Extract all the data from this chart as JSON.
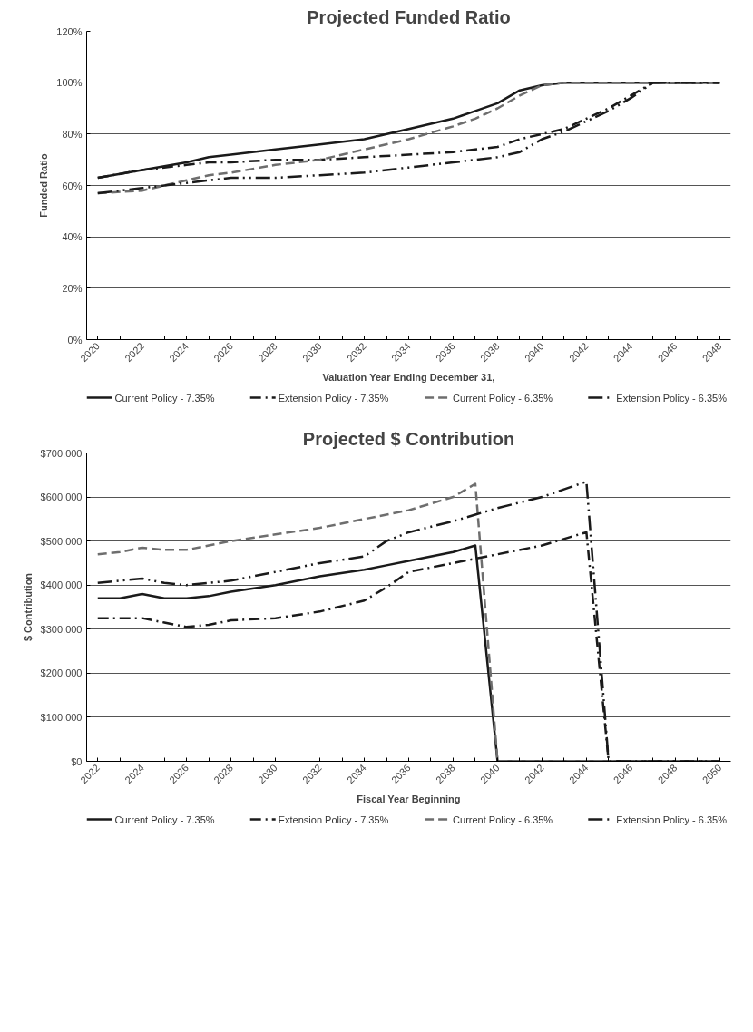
{
  "chart_data": [
    {
      "type": "line",
      "title": "Projected Funded Ratio",
      "xlabel": "Valuation Year Ending December 31,",
      "ylabel": "Funded Ratio",
      "x": [
        2020,
        2022,
        2024,
        2025,
        2026,
        2028,
        2030,
        2032,
        2034,
        2036,
        2037,
        2038,
        2039,
        2040,
        2041,
        2042,
        2043,
        2044,
        2045,
        2046,
        2048
      ],
      "series": [
        {
          "name": "Current Policy - 7.35%",
          "color": "#1a1a1a",
          "line_style": "solid",
          "values": [
            63,
            66,
            69,
            71,
            72,
            74,
            76,
            78,
            82,
            86,
            89,
            92,
            97,
            99,
            100,
            100,
            100,
            100,
            100,
            100,
            100
          ]
        },
        {
          "name": "Extension Policy - 7.35%",
          "color": "#1a1a1a",
          "line_style": "dashdot",
          "values": [
            63,
            66,
            68,
            69,
            69,
            70,
            70,
            71,
            72,
            73,
            74,
            75,
            78,
            80,
            82,
            86,
            90,
            95,
            100,
            100,
            100
          ]
        },
        {
          "name": "Current Policy - 6.35%",
          "color": "#6e6e6e",
          "line_style": "dashed",
          "values": [
            57,
            58,
            62,
            64,
            65,
            68,
            70,
            74,
            78,
            83,
            86,
            90,
            95,
            99,
            100,
            100,
            100,
            100,
            100,
            100,
            100
          ]
        },
        {
          "name": "Extension Policy - 6.35%",
          "color": "#1a1a1a",
          "line_style": "dashdotdot",
          "values": [
            57,
            59,
            61,
            62,
            63,
            63,
            64,
            65,
            67,
            69,
            70,
            71,
            73,
            78,
            81,
            85,
            89,
            94,
            100,
            100,
            100
          ]
        }
      ],
      "xlim": [
        2019.5,
        2048.5
      ],
      "xticks": [
        2020,
        {
          "value": 2021,
          "label": null
        },
        2022,
        {
          "value": 2023,
          "label": null
        },
        2024,
        {
          "value": 2025,
          "label": null
        },
        2026,
        {
          "value": 2027,
          "label": null
        },
        2028,
        {
          "value": 2029,
          "label": null
        },
        2030,
        {
          "value": 2031,
          "label": null
        },
        2032,
        {
          "value": 2033,
          "label": null
        },
        2034,
        {
          "value": 2035,
          "label": null
        },
        2036,
        {
          "value": 2037,
          "label": null
        },
        2038,
        {
          "value": 2039,
          "label": null
        },
        2040,
        {
          "value": 2041,
          "label": null
        },
        2042,
        {
          "value": 2043,
          "label": null
        },
        2044,
        {
          "value": 2045,
          "label": null
        },
        2046,
        {
          "value": 2047,
          "label": null
        },
        2048
      ],
      "ylim": [
        0,
        120
      ],
      "yticks": [
        {
          "value": 0,
          "label": "0%"
        },
        {
          "value": 20,
          "label": "20%"
        },
        {
          "value": 40,
          "label": "40%"
        },
        {
          "value": 60,
          "label": "60%"
        },
        {
          "value": 80,
          "label": "80%"
        },
        {
          "value": 100,
          "label": "100%"
        },
        {
          "value": 120,
          "label": "120%"
        }
      ],
      "grid": "y",
      "legend": "bottom"
    },
    {
      "type": "line",
      "title": "Projected $ Contribution",
      "xlabel": "Fiscal Year Beginning",
      "ylabel": "$ Contribution",
      "x": [
        2022,
        2023,
        2024,
        2025,
        2026,
        2027,
        2028,
        2030,
        2032,
        2034,
        2035,
        2036,
        2038,
        2039,
        2040,
        2042,
        2044,
        2045,
        2046,
        2048,
        2050
      ],
      "series": [
        {
          "name": "Current Policy - 7.35%",
          "color": "#1a1a1a",
          "line_style": "solid",
          "values": [
            370000,
            370000,
            380000,
            370000,
            370000,
            375000,
            385000,
            400000,
            420000,
            435000,
            445000,
            455000,
            475000,
            490000,
            0,
            0,
            0,
            0,
            0,
            0,
            0
          ]
        },
        {
          "name": "Extension Policy - 7.35%",
          "color": "#1a1a1a",
          "line_style": "dashdot",
          "values": [
            325000,
            325000,
            325000,
            315000,
            305000,
            310000,
            320000,
            325000,
            340000,
            365000,
            395000,
            430000,
            450000,
            460000,
            470000,
            490000,
            520000,
            0,
            0,
            0,
            0
          ]
        },
        {
          "name": "Current Policy - 6.35%",
          "color": "#6e6e6e",
          "line_style": "dashed",
          "values": [
            470000,
            475000,
            485000,
            480000,
            480000,
            490000,
            500000,
            515000,
            530000,
            550000,
            560000,
            570000,
            600000,
            630000,
            0,
            0,
            0,
            0,
            0,
            0,
            0
          ]
        },
        {
          "name": "Extension Policy - 6.35%",
          "color": "#1a1a1a",
          "line_style": "dashdotdot",
          "values": [
            405000,
            410000,
            415000,
            405000,
            400000,
            405000,
            410000,
            430000,
            450000,
            465000,
            500000,
            520000,
            545000,
            560000,
            575000,
            600000,
            635000,
            0,
            0,
            0,
            0
          ]
        }
      ],
      "xlim": [
        2021.5,
        2050.5
      ],
      "xticks": [
        2022,
        {
          "value": 2023,
          "label": null
        },
        2024,
        {
          "value": 2025,
          "label": null
        },
        2026,
        {
          "value": 2027,
          "label": null
        },
        2028,
        {
          "value": 2029,
          "label": null
        },
        2030,
        {
          "value": 2031,
          "label": null
        },
        2032,
        {
          "value": 2033,
          "label": null
        },
        2034,
        {
          "value": 2035,
          "label": null
        },
        2036,
        {
          "value": 2037,
          "label": null
        },
        2038,
        {
          "value": 2039,
          "label": null
        },
        2040,
        {
          "value": 2041,
          "label": null
        },
        2042,
        {
          "value": 2043,
          "label": null
        },
        2044,
        {
          "value": 2045,
          "label": null
        },
        2046,
        {
          "value": 2047,
          "label": null
        },
        2048,
        {
          "value": 2049,
          "label": null
        },
        2050
      ],
      "ylim": [
        0,
        700000
      ],
      "yticks": [
        {
          "value": 0,
          "label": "$0"
        },
        {
          "value": 100000,
          "label": "$100,000"
        },
        {
          "value": 200000,
          "label": "$200,000"
        },
        {
          "value": 300000,
          "label": "$300,000"
        },
        {
          "value": 400000,
          "label": "$400,000"
        },
        {
          "value": 500000,
          "label": "$500,000"
        },
        {
          "value": 600000,
          "label": "$600,000"
        },
        {
          "value": 700000,
          "label": "$700,000"
        }
      ],
      "grid": "y",
      "legend": "bottom"
    }
  ]
}
